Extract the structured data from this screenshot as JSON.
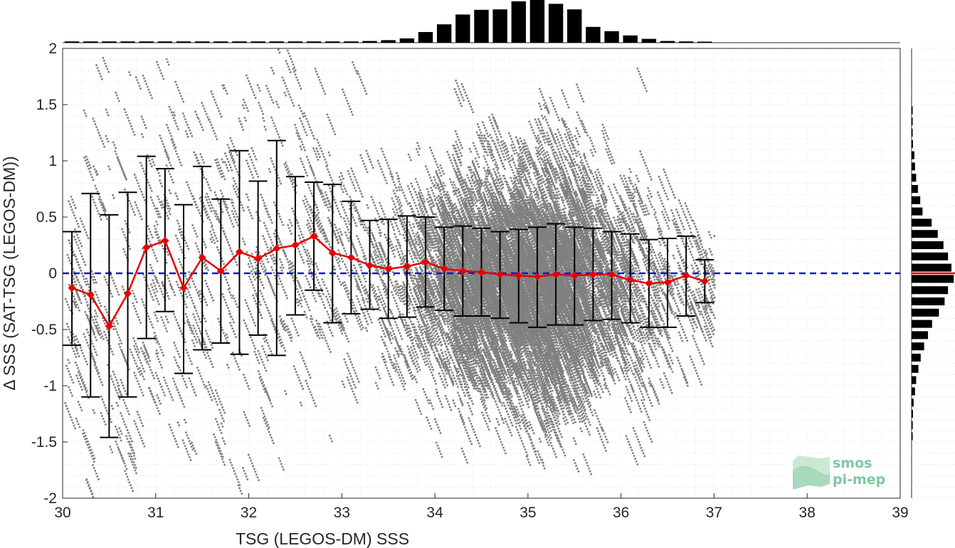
{
  "chart_data": {
    "type": "scatter",
    "title": "",
    "xlabel": "TSG (LEGOS-DM) SSS",
    "ylabel": "Δ SSS (SAT-TSG (LEGOS-DM))",
    "xlim": [
      30,
      39
    ],
    "ylim": [
      -2,
      2
    ],
    "xticks": [
      "30",
      "31",
      "32",
      "33",
      "34",
      "35",
      "36",
      "37",
      "38",
      "39"
    ],
    "yticks": [
      "-2",
      "-1.5",
      "-1",
      "-0.5",
      "0",
      "0.5",
      "1",
      "1.5",
      "2"
    ],
    "grid": true,
    "reference_line": {
      "y": 0,
      "style": "dashed",
      "color": "#1414d2"
    },
    "colors": {
      "scatter": "#808080",
      "mean_line": "#e60000",
      "errorbar": "#000000",
      "histogram": "#000000",
      "zero_line": "#1414d2"
    },
    "binned_mean": {
      "name": "",
      "x": [
        30.1,
        30.3,
        30.5,
        30.7,
        30.9,
        31.1,
        31.3,
        31.5,
        31.7,
        31.9,
        32.1,
        32.3,
        32.5,
        32.7,
        32.9,
        33.1,
        33.3,
        33.5,
        33.7,
        33.9,
        34.1,
        34.3,
        34.5,
        34.7,
        34.9,
        35.1,
        35.3,
        35.5,
        35.7,
        35.9,
        36.1,
        36.3,
        36.5,
        36.7,
        36.9
      ],
      "mean": [
        -0.13,
        -0.19,
        -0.47,
        -0.18,
        0.23,
        0.29,
        -0.13,
        0.14,
        0.02,
        0.19,
        0.13,
        0.22,
        0.25,
        0.33,
        0.18,
        0.14,
        0.07,
        0.04,
        0.06,
        0.1,
        0.04,
        0.02,
        0.01,
        -0.01,
        -0.02,
        -0.03,
        -0.01,
        -0.02,
        -0.01,
        -0.01,
        -0.06,
        -0.09,
        -0.08,
        -0.02,
        -0.07
      ],
      "upper": [
        0.37,
        0.71,
        0.52,
        0.72,
        1.04,
        0.93,
        0.61,
        0.95,
        0.66,
        1.09,
        0.82,
        1.18,
        0.86,
        0.81,
        0.79,
        0.64,
        0.47,
        0.48,
        0.51,
        0.5,
        0.41,
        0.42,
        0.4,
        0.37,
        0.39,
        0.41,
        0.44,
        0.41,
        0.4,
        0.37,
        0.35,
        0.3,
        0.31,
        0.33,
        0.12
      ],
      "lower": [
        -0.64,
        -1.1,
        -1.46,
        -1.1,
        -0.58,
        -0.34,
        -0.89,
        -0.68,
        -0.62,
        -0.72,
        -0.55,
        -0.73,
        -0.37,
        -0.15,
        -0.44,
        -0.36,
        -0.32,
        -0.4,
        -0.39,
        -0.3,
        -0.33,
        -0.38,
        -0.38,
        -0.4,
        -0.44,
        -0.48,
        -0.46,
        -0.46,
        -0.42,
        -0.41,
        -0.44,
        -0.48,
        -0.48,
        -0.38,
        -0.26
      ]
    },
    "histogram_x": {
      "bin_centers": [
        30.1,
        30.3,
        30.5,
        30.7,
        30.9,
        31.1,
        31.3,
        31.5,
        31.7,
        31.9,
        32.1,
        32.3,
        32.5,
        32.7,
        32.9,
        33.1,
        33.3,
        33.5,
        33.7,
        33.9,
        34.1,
        34.3,
        34.5,
        34.7,
        34.9,
        35.1,
        35.3,
        35.5,
        35.7,
        35.9,
        36.1,
        36.3,
        36.5,
        36.7,
        36.9
      ],
      "relative_counts": [
        0.03,
        0.03,
        0.03,
        0.03,
        0.03,
        0.03,
        0.03,
        0.03,
        0.03,
        0.03,
        0.03,
        0.03,
        0.03,
        0.03,
        0.03,
        0.03,
        0.04,
        0.06,
        0.1,
        0.25,
        0.43,
        0.66,
        0.77,
        0.78,
        0.97,
        1.0,
        0.91,
        0.78,
        0.37,
        0.27,
        0.17,
        0.09,
        0.04,
        0.03,
        0.02
      ]
    },
    "histogram_y": {
      "bin_centers": [
        1.45,
        1.35,
        1.25,
        1.15,
        1.05,
        0.95,
        0.85,
        0.75,
        0.65,
        0.55,
        0.45,
        0.35,
        0.25,
        0.15,
        0.05,
        -0.05,
        -0.15,
        -0.25,
        -0.35,
        -0.45,
        -0.55,
        -0.65,
        -0.75,
        -0.85,
        -0.95,
        -1.05,
        -1.15,
        -1.25,
        -1.35,
        -1.45
      ],
      "relative_counts": [
        0.03,
        0.03,
        0.04,
        0.06,
        0.12,
        0.15,
        0.2,
        0.28,
        0.38,
        0.48,
        0.88,
        1.15,
        1.4,
        1.6,
        1.75,
        1.85,
        1.6,
        1.45,
        1.2,
        0.9,
        0.72,
        0.55,
        0.4,
        0.3,
        0.2,
        0.15,
        0.09,
        0.06,
        0.05,
        0.03
      ]
    },
    "mean_marker_y": 0.0
  },
  "logo": {
    "line1": "smos",
    "line2": "pi-mep"
  }
}
